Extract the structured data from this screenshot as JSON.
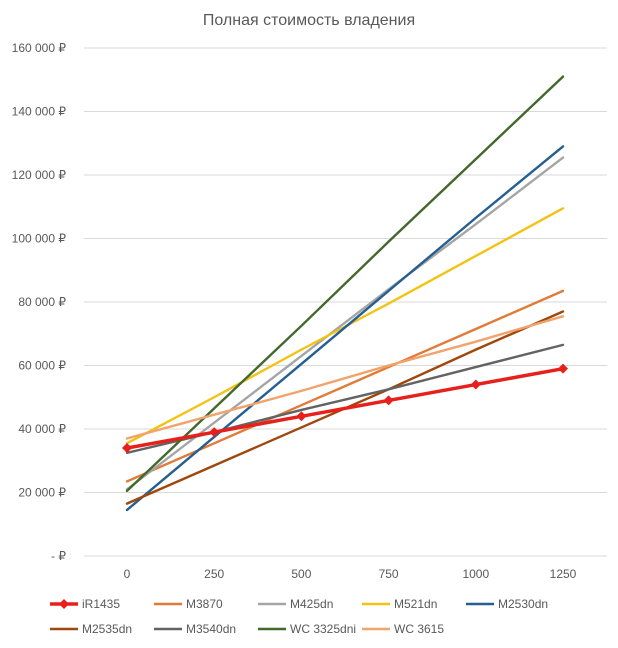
{
  "chart_data": {
    "type": "line",
    "title": "Полная стоимость владения",
    "xlabel": "",
    "ylabel": "",
    "x": [
      0,
      250,
      500,
      750,
      1000,
      1250
    ],
    "x_tick_labels": [
      "0",
      "250",
      "500",
      "750",
      "1000",
      "1250"
    ],
    "ylim": [
      0,
      160000
    ],
    "y_ticks": [
      0,
      20000,
      40000,
      60000,
      80000,
      100000,
      120000,
      140000,
      160000
    ],
    "y_tick_labels": [
      "-  ₽",
      "20 000 ₽",
      "40 000 ₽",
      "60 000 ₽",
      "80 000 ₽",
      "100 000 ₽",
      "120 000 ₽",
      "140 000 ₽",
      "160 000 ₽"
    ],
    "grid": true,
    "legend_position": "bottom",
    "series": [
      {
        "name": "iR1435",
        "color": "#e8201c",
        "markers": true,
        "values": [
          34000,
          39000,
          44000,
          49000,
          54000,
          59000
        ]
      },
      {
        "name": "M3870",
        "color": "#e07b39",
        "markers": false,
        "values": [
          23500,
          35500,
          47500,
          59500,
          71500,
          83500
        ]
      },
      {
        "name": "M425dn",
        "color": "#a5a5a5",
        "markers": false,
        "values": [
          21000,
          42000,
          63000,
          84000,
          104500,
          125500
        ]
      },
      {
        "name": "M521dn",
        "color": "#f2c314",
        "markers": false,
        "values": [
          35500,
          50000,
          65000,
          79500,
          94500,
          109500
        ]
      },
      {
        "name": "M2530dn",
        "color": "#255e91",
        "markers": false,
        "values": [
          14500,
          37500,
          60500,
          83500,
          106500,
          129000
        ]
      },
      {
        "name": "M2535dn",
        "color": "#9e480e",
        "markers": false,
        "values": [
          16500,
          28500,
          40500,
          52500,
          65000,
          77000
        ]
      },
      {
        "name": "M3540dn",
        "color": "#636363",
        "markers": false,
        "values": [
          32500,
          39000,
          46000,
          52500,
          59500,
          66500
        ]
      },
      {
        "name": "WC 3325dni",
        "color": "#43682b",
        "markers": false,
        "values": [
          20500,
          46500,
          72500,
          99000,
          125000,
          151000
        ]
      },
      {
        "name": "WC 3615",
        "color": "#f1a36c",
        "markers": false,
        "values": [
          37000,
          44500,
          52000,
          60000,
          67500,
          75500
        ]
      }
    ]
  }
}
